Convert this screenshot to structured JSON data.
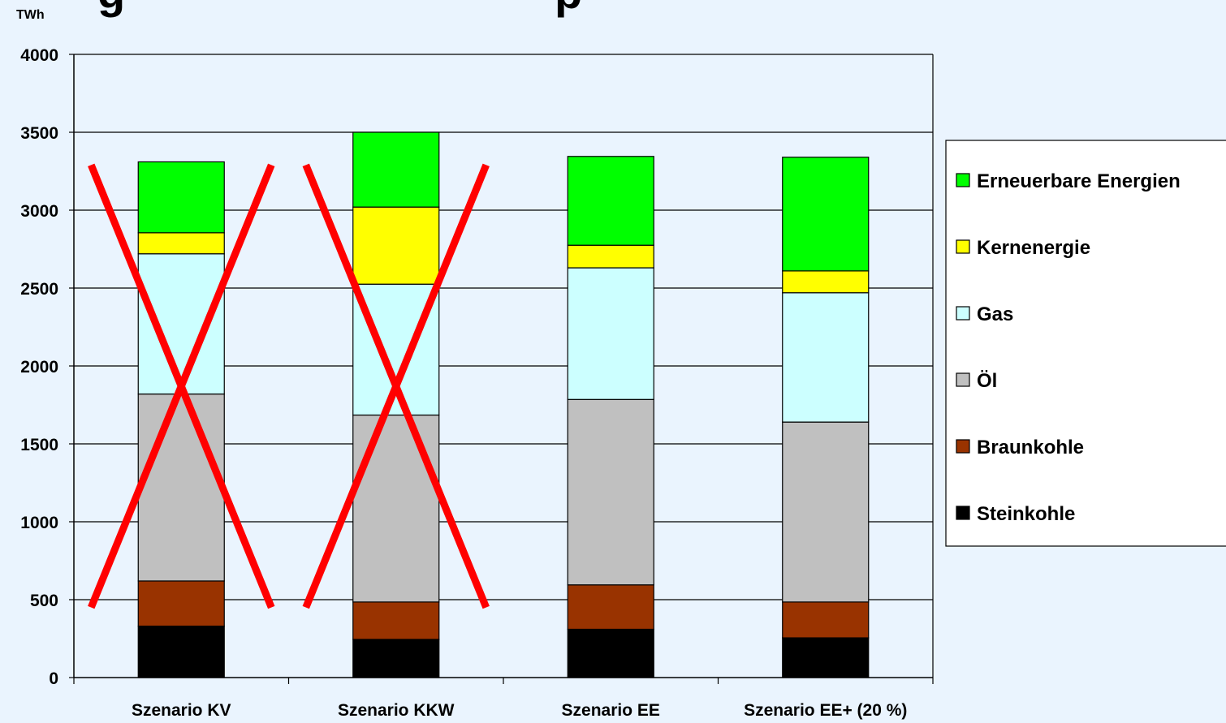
{
  "chart_data": {
    "type": "bar",
    "stacked": true,
    "ylabel": "TWh",
    "ylim": [
      0,
      4000
    ],
    "yticks": [
      0,
      500,
      1000,
      1500,
      2000,
      2500,
      3000,
      3500,
      4000
    ],
    "grid": true,
    "legend_position": "right",
    "categories": [
      "Szenario KV",
      "Szenario KKW",
      "Szenario EE",
      "Szenario EE+ (20 %)"
    ],
    "series": [
      {
        "name": "Steinkohle",
        "color": "#000000",
        "values": [
          330,
          245,
          310,
          255
        ]
      },
      {
        "name": "Braunkohle",
        "color": "#993300",
        "values": [
          290,
          240,
          285,
          230
        ]
      },
      {
        "name": "Öl",
        "color": "#c0c0c0",
        "values": [
          1200,
          1200,
          1190,
          1155
        ]
      },
      {
        "name": "Gas",
        "color": "#ccffff",
        "values": [
          900,
          840,
          845,
          830
        ]
      },
      {
        "name": "Kernenergie",
        "color": "#ffff00",
        "values": [
          135,
          495,
          145,
          140
        ]
      },
      {
        "name": "Erneuerbare Energien",
        "color": "#00ff00",
        "values": [
          455,
          480,
          570,
          730
        ]
      }
    ],
    "crossed_out": [
      "Szenario KV",
      "Szenario KKW"
    ],
    "cross_color": "#ff0000"
  }
}
